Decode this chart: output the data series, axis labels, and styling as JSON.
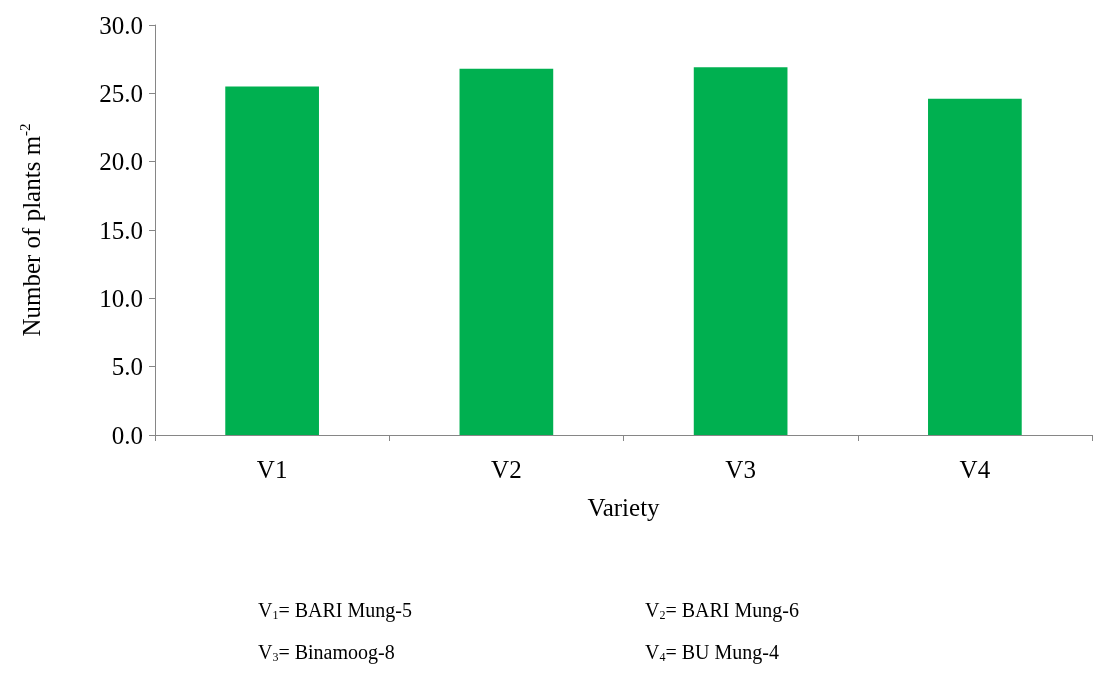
{
  "chart_data": {
    "type": "bar",
    "xlabel": "Variety",
    "ylabel": "Number of plants m$^{-2}$",
    "categories": [
      "V1",
      "V2",
      "V3",
      "V4"
    ],
    "values": [
      25.5,
      26.8,
      26.9,
      24.6
    ],
    "color": "#00b050",
    "ylim": [
      0,
      30
    ],
    "yticks": [
      {
        "value": 0,
        "label": "0.0"
      },
      {
        "value": 5,
        "label": "5.0"
      },
      {
        "value": 10,
        "label": "10.0"
      },
      {
        "value": 15,
        "label": "15.0"
      },
      {
        "value": 20,
        "label": "20.0"
      },
      {
        "value": 25,
        "label": "25.0"
      },
      {
        "value": 30,
        "label": "30.0"
      }
    ],
    "grid": false,
    "annotations": [
      "V$_{1}$= BARI Mung-5",
      "V$_{2}$= BARI Mung-6",
      "V$_{3}$= Binamoog-8",
      "V$_{4}$= BU Mung-4"
    ]
  }
}
